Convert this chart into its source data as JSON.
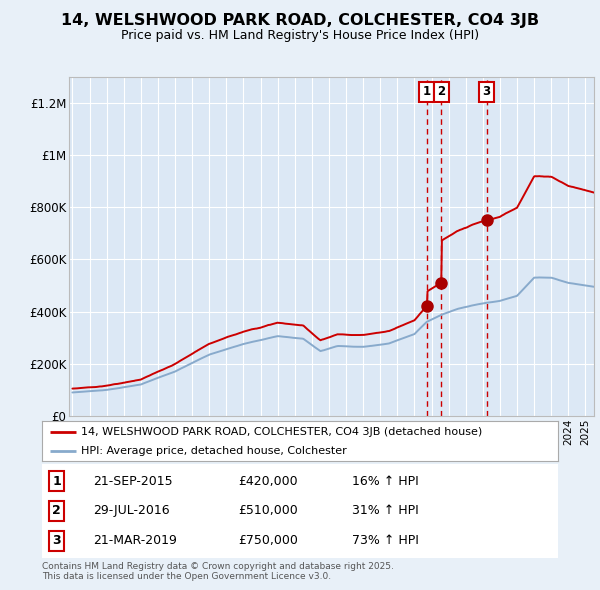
{
  "title": "14, WELSHWOOD PARK ROAD, COLCHESTER, CO4 3JB",
  "subtitle": "Price paid vs. HM Land Registry's House Price Index (HPI)",
  "background_color": "#e8f0f8",
  "plot_bg_color": "#dce8f5",
  "grid_color": "#ffffff",
  "transaction_labels": [
    {
      "num": "1",
      "date": "21-SEP-2015",
      "price": "£420,000",
      "pct": "16% ↑ HPI"
    },
    {
      "num": "2",
      "date": "29-JUL-2016",
      "price": "£510,000",
      "pct": "31% ↑ HPI"
    },
    {
      "num": "3",
      "date": "21-MAR-2019",
      "price": "£750,000",
      "pct": "73% ↑ HPI"
    }
  ],
  "footer": "Contains HM Land Registry data © Crown copyright and database right 2025.\nThis data is licensed under the Open Government Licence v3.0.",
  "legend_house": "14, WELSHWOOD PARK ROAD, COLCHESTER, CO4 3JB (detached house)",
  "legend_hpi": "HPI: Average price, detached house, Colchester",
  "house_color": "#cc0000",
  "hpi_color": "#88aacc",
  "dashed_color": "#cc0000",
  "marker_color": "#aa0000",
  "ylim": [
    0,
    1300000
  ],
  "yticks": [
    0,
    200000,
    400000,
    600000,
    800000,
    1000000,
    1200000
  ],
  "ytick_labels": [
    "£0",
    "£200K",
    "£400K",
    "£600K",
    "£800K",
    "£1M",
    "£1.2M"
  ],
  "xstart": 1994.8,
  "xend": 2025.5,
  "t1_year": 2015.72,
  "t2_year": 2016.57,
  "t3_year": 2019.22,
  "t1_price": 420000,
  "t2_price": 510000,
  "t3_price": 750000
}
